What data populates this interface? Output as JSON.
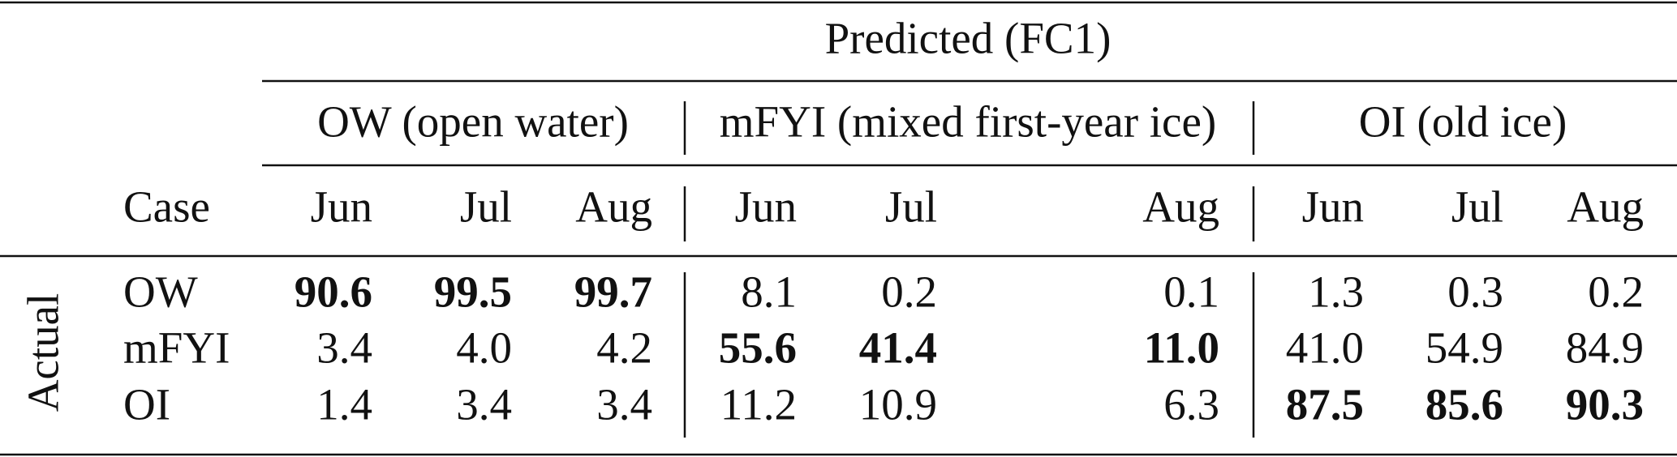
{
  "table": {
    "title": "Predicted (FC1)",
    "row_header": "Actual",
    "case_header": "Case",
    "groups": [
      {
        "name": "OW (open water)",
        "months": [
          "Jun",
          "Jul",
          "Aug"
        ]
      },
      {
        "name": "mFYI (mixed first-year ice)",
        "months": [
          "Jun",
          "Jul",
          "Aug"
        ]
      },
      {
        "name": "OI (old ice)",
        "months": [
          "Jun",
          "Jul",
          "Aug"
        ]
      }
    ],
    "rows": [
      {
        "case": "OW",
        "cells": [
          "90.6",
          "99.5",
          "99.7",
          "8.1",
          "0.2",
          "0.1",
          "1.3",
          "0.3",
          "0.2"
        ],
        "bold": [
          true,
          true,
          true,
          false,
          false,
          false,
          false,
          false,
          false
        ]
      },
      {
        "case": "mFYI",
        "cells": [
          "3.4",
          "4.0",
          "4.2",
          "55.6",
          "41.4",
          "11.0",
          "41.0",
          "54.9",
          "84.9"
        ],
        "bold": [
          false,
          false,
          false,
          true,
          true,
          true,
          false,
          false,
          false
        ]
      },
      {
        "case": "OI",
        "cells": [
          "1.4",
          "3.4",
          "3.4",
          "11.2",
          "10.9",
          "6.3",
          "87.5",
          "85.6",
          "90.3"
        ],
        "bold": [
          false,
          false,
          false,
          false,
          false,
          false,
          true,
          true,
          true
        ]
      }
    ]
  }
}
